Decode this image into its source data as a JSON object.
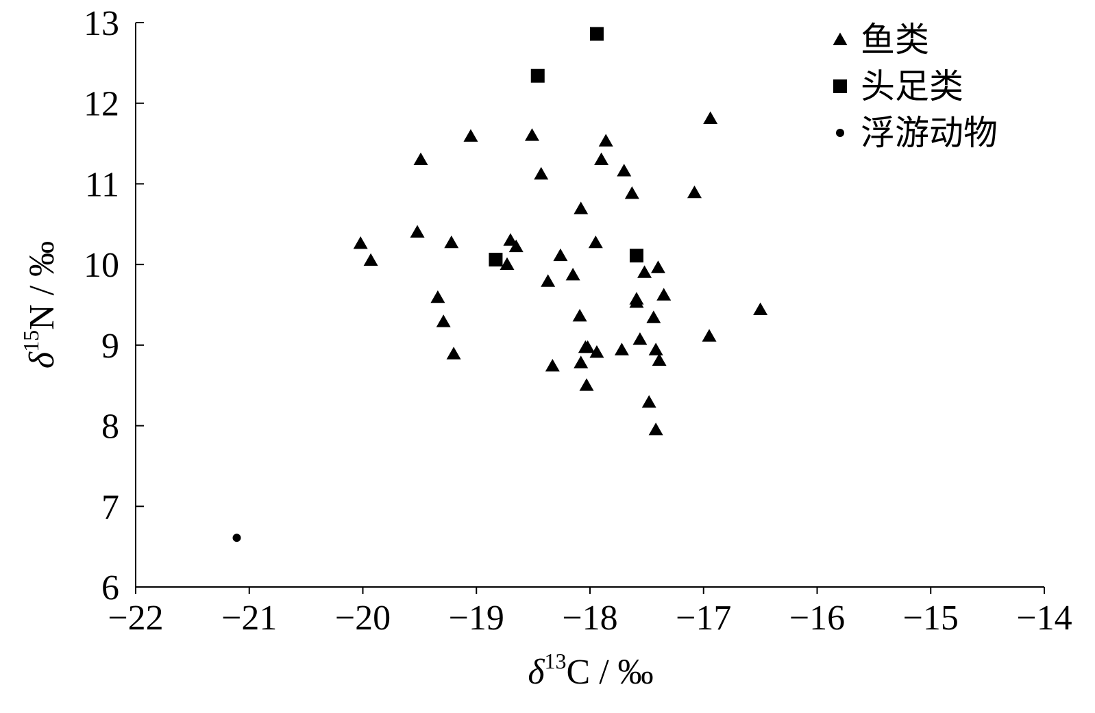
{
  "chart_data": {
    "type": "scatter",
    "xlabel": {
      "symbol": "δ",
      "sup": "13",
      "base": "C",
      "unit": " / ‰"
    },
    "ylabel": {
      "symbol": "δ",
      "sup": "15",
      "base": "N",
      "unit": " / ‰"
    },
    "xlim": [
      -22,
      -14
    ],
    "ylim": [
      6,
      13
    ],
    "xticks": [
      -22,
      -21,
      -20,
      -19,
      -18,
      -17,
      -16,
      -15,
      -14
    ],
    "yticks": [
      6,
      7,
      8,
      9,
      10,
      11,
      12,
      13
    ],
    "xtick_labels": [
      "−22",
      "−21",
      "−20",
      "−19",
      "−18",
      "−17",
      "−16",
      "−15",
      "−14"
    ],
    "ytick_labels": [
      "6",
      "7",
      "8",
      "9",
      "10",
      "11",
      "12",
      "13"
    ],
    "grid": false,
    "legend_position": "top-right",
    "series": [
      {
        "name": "鱼类",
        "marker": "triangle",
        "color": "#000000",
        "points": [
          [
            -20.02,
            10.26
          ],
          [
            -19.93,
            10.05
          ],
          [
            -19.52,
            10.4
          ],
          [
            -19.49,
            11.3
          ],
          [
            -19.34,
            9.59
          ],
          [
            -19.29,
            9.29
          ],
          [
            -19.22,
            10.27
          ],
          [
            -19.2,
            8.89
          ],
          [
            -19.05,
            11.59
          ],
          [
            -18.7,
            10.3
          ],
          [
            -18.65,
            10.22
          ],
          [
            -18.73,
            10.0
          ],
          [
            -18.51,
            11.6
          ],
          [
            -18.43,
            11.12
          ],
          [
            -18.37,
            9.79
          ],
          [
            -18.33,
            8.74
          ],
          [
            -18.26,
            10.11
          ],
          [
            -18.15,
            9.87
          ],
          [
            -18.08,
            10.69
          ],
          [
            -18.09,
            9.36
          ],
          [
            -18.08,
            8.78
          ],
          [
            -18.04,
            8.97
          ],
          [
            -18.03,
            8.5
          ],
          [
            -18.02,
            8.97
          ],
          [
            -17.95,
            10.27
          ],
          [
            -17.94,
            8.91
          ],
          [
            -17.9,
            11.3
          ],
          [
            -17.86,
            11.53
          ],
          [
            -17.72,
            8.94
          ],
          [
            -17.7,
            11.16
          ],
          [
            -17.63,
            10.88
          ],
          [
            -17.59,
            9.53
          ],
          [
            -17.59,
            9.57
          ],
          [
            -17.56,
            9.07
          ],
          [
            -17.52,
            9.9
          ],
          [
            -17.48,
            8.29
          ],
          [
            -17.44,
            9.34
          ],
          [
            -17.42,
            8.94
          ],
          [
            -17.42,
            7.95
          ],
          [
            -17.4,
            9.96
          ],
          [
            -17.39,
            8.81
          ],
          [
            -17.35,
            9.62
          ],
          [
            -17.08,
            10.89
          ],
          [
            -16.94,
            11.81
          ],
          [
            -16.95,
            9.11
          ],
          [
            -16.5,
            9.44
          ]
        ]
      },
      {
        "name": "头足类",
        "marker": "square",
        "color": "#000000",
        "points": [
          [
            -18.83,
            10.06
          ],
          [
            -18.46,
            12.34
          ],
          [
            -17.94,
            12.86
          ],
          [
            -17.59,
            10.11
          ]
        ]
      },
      {
        "name": "浮游动物",
        "marker": "circle",
        "color": "#000000",
        "points": [
          [
            -21.11,
            6.61
          ]
        ]
      }
    ]
  }
}
